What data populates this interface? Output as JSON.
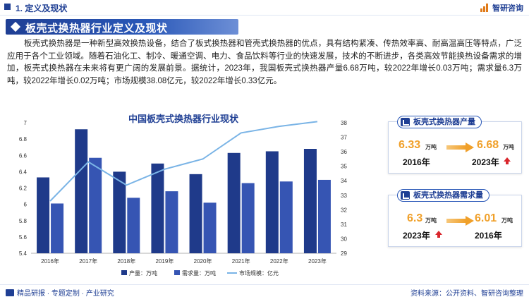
{
  "header": {
    "section": "1. 定义及现状",
    "brand": "智研咨询"
  },
  "banner": {
    "title": "板壳式换热器行业定义及现状"
  },
  "intro": "板壳式换热器是一种新型高效换热设备，结合了板式换热器和管壳式换热器的优点，具有结构紧凑、传热效率高、耐高温高压等特点，广泛应用于各个工业领域。随着石油化工、制冷、暖通空调、电力、食品饮料等行业的快速发展，技术的不断进步，各类高效节能换热设备需求的增加，板壳式换热器在未来将有更广阔的发展前景。据统计，2023年，我国板壳式换热器产量6.68万吨，较2022年增长0.03万吨；需求量6.3万吨，较2022年增长0.02万吨；市场规模38.08亿元，较2022年增长0.33亿元。",
  "chart_data": {
    "type": "bar",
    "title": "中国板壳式换热器行业现状",
    "categories": [
      "2016年",
      "2017年",
      "2018年",
      "2019年",
      "2020年",
      "2021年",
      "2022年",
      "2023年"
    ],
    "series": [
      {
        "name": "产量：万吨",
        "kind": "bar",
        "axis": "left",
        "values": [
          6.33,
          6.92,
          6.4,
          6.5,
          6.37,
          6.63,
          6.65,
          6.68
        ]
      },
      {
        "name": "需求量：万吨",
        "kind": "bar",
        "axis": "left",
        "values": [
          6.01,
          6.57,
          6.08,
          6.16,
          6.02,
          6.26,
          6.28,
          6.3
        ]
      },
      {
        "name": "市场规模：亿元",
        "kind": "line",
        "axis": "right",
        "values": [
          32.6,
          35.3,
          33.7,
          34.8,
          35.5,
          37.3,
          37.75,
          38.08
        ]
      }
    ],
    "ylim_left": [
      5.4,
      7.0
    ],
    "yticks_left": [
      "5.4",
      "5.6",
      "5.8",
      "6",
      "6.2",
      "6.4",
      "6.6",
      "6.8",
      "7"
    ],
    "ylim_right": [
      29,
      38
    ],
    "yticks_right": [
      "29",
      "30",
      "31",
      "32",
      "33",
      "34",
      "35",
      "36",
      "37",
      "38"
    ],
    "legend_position": "bottom",
    "colors": {
      "production": "#1f3a8a",
      "demand": "#3655b3",
      "market": "#7ab4e6"
    }
  },
  "cards": {
    "production": {
      "title": "板壳式换热器产量",
      "from_value": "6.33",
      "from_unit": "万吨",
      "from_year": "2016年",
      "to_value": "6.68",
      "to_unit": "万吨",
      "to_year": "2023年"
    },
    "demand": {
      "title": "板壳式换热器需求量",
      "left_value": "6.3",
      "left_unit": "万吨",
      "left_year": "2023年",
      "right_value": "6.01",
      "right_unit": "万吨",
      "right_year": "2016年"
    }
  },
  "footer": {
    "left": "精品研报 · 专题定制 · 产业研究",
    "right": "资料来源：公开资料、智研咨询整理"
  }
}
